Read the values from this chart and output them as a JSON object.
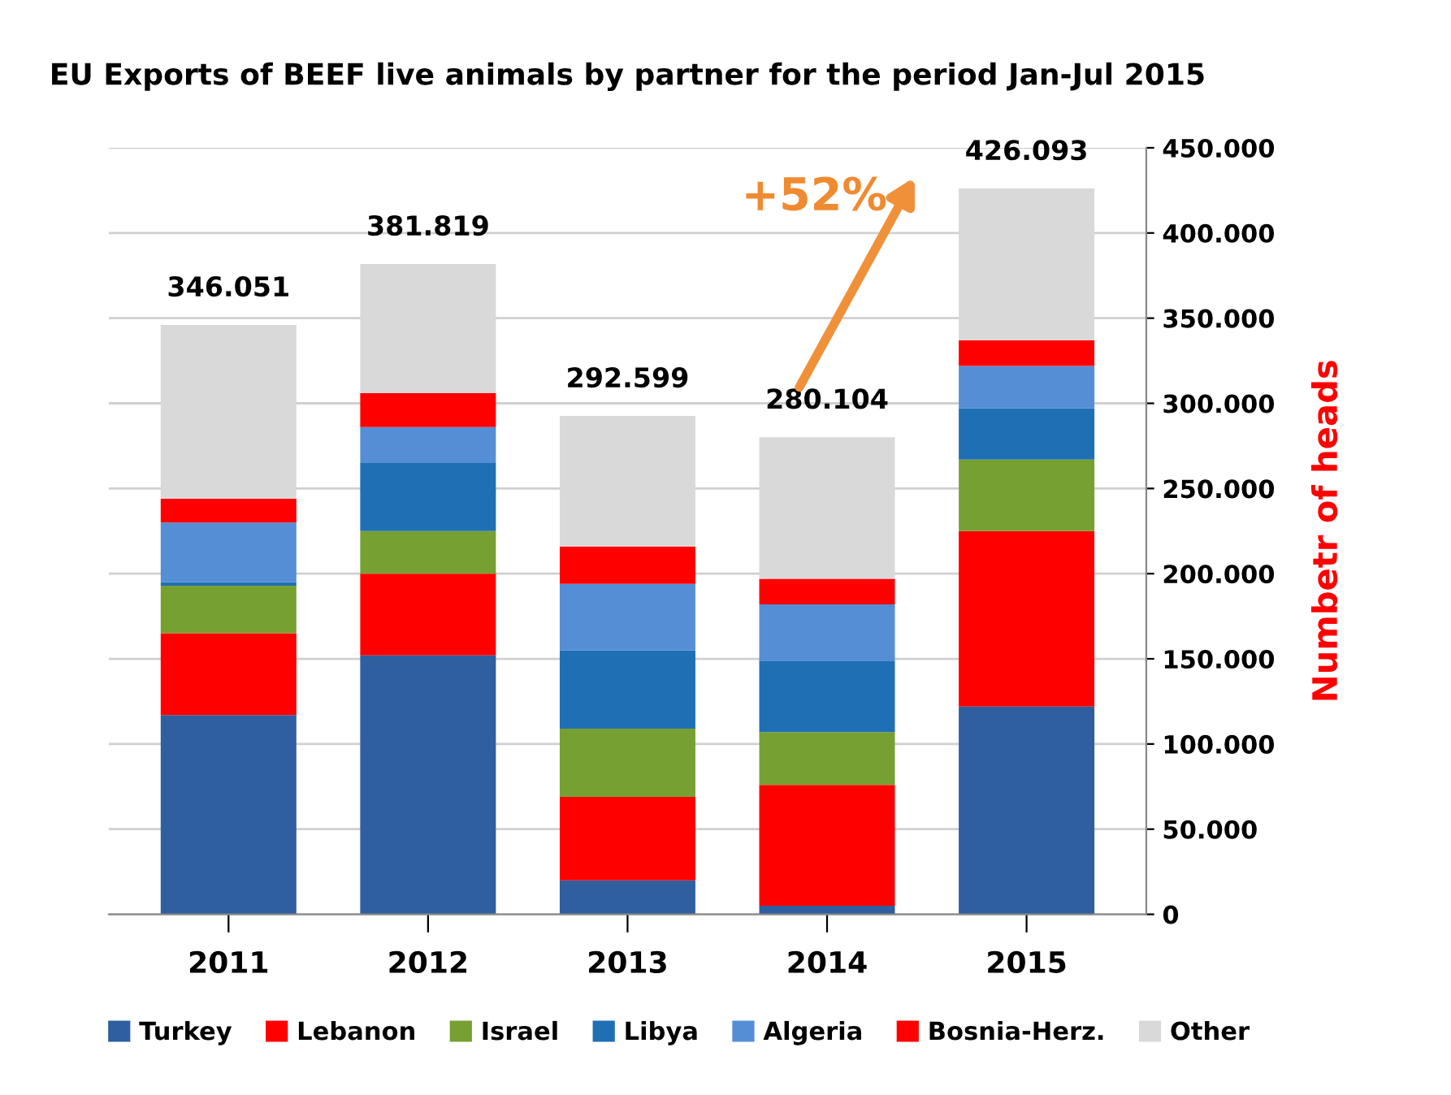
{
  "chart_data": {
    "type": "bar",
    "stacked": true,
    "title": "EU Exports of BEEF live animals by partner for the period Jan-Jul 2015",
    "ylabel": "Numbetr of heads",
    "categories": [
      "2011",
      "2012",
      "2013",
      "2014",
      "2015"
    ],
    "series": [
      {
        "name": "Turkey",
        "color": "#2f5f9e",
        "values": [
          117000,
          152000,
          20000,
          5000,
          122000
        ]
      },
      {
        "name": "Lebanon",
        "color": "#ff0000",
        "values": [
          48000,
          48000,
          49000,
          71000,
          103000
        ]
      },
      {
        "name": "Israel",
        "color": "#77a033",
        "values": [
          28000,
          25000,
          40000,
          31000,
          42000
        ]
      },
      {
        "name": "Libya",
        "color": "#1f6fb5",
        "values": [
          2000,
          40000,
          46000,
          42000,
          30000
        ]
      },
      {
        "name": "Algeria",
        "color": "#558ed5",
        "values": [
          35000,
          21000,
          39000,
          33000,
          25000
        ]
      },
      {
        "name": "Bosnia-Herz.",
        "color": "#ff0000",
        "values": [
          14000,
          20000,
          22000,
          15000,
          15000
        ]
      },
      {
        "name": "Other",
        "color": "#d9d9d9",
        "values": [
          102051,
          75819,
          76599,
          83104,
          89093
        ]
      }
    ],
    "totals": [
      "346.051",
      "381.819",
      "292.599",
      "280.104",
      "426.093"
    ],
    "ylim": [
      0,
      450000
    ],
    "yticks": [
      0,
      {
        "value": 50000,
        "label": "50.000"
      },
      {
        "value": 100000,
        "label": "100.000"
      },
      {
        "value": 150000,
        "label": "150.000"
      },
      {
        "value": 200000,
        "label": "200.000"
      },
      {
        "value": 250000,
        "label": "250.000"
      },
      {
        "value": 300000,
        "label": "300.000"
      },
      {
        "value": 350000,
        "label": "350.000"
      },
      {
        "value": 400000,
        "label": "400.000"
      },
      {
        "value": 450000,
        "label": "450.000"
      }
    ],
    "grid": "y",
    "legend": "bottom",
    "annotations": [
      "+52%"
    ]
  }
}
